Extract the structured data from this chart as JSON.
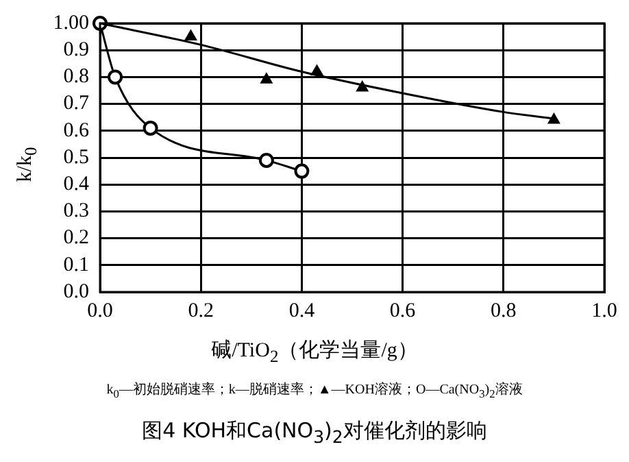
{
  "chart_data": {
    "type": "line",
    "title": "图4 KOH和Ca(NO$_{3}$)$_{2}$对催化剂的影响",
    "xlabel": "碱/TiO$_{2}$（化学当量/g）",
    "ylabel": "k/k$_{0}$",
    "annotations": [
      "k$_{0}$—初始脱硝速率；k—脱硝速率；▲—KOH溶液；O—Ca(NO$_{3}$)$_{2}$溶液"
    ],
    "xlim": [
      0,
      1
    ],
    "xticks": [
      {
        "value": 0,
        "label": "0.0"
      },
      {
        "value": 0.2,
        "label": "0.2"
      },
      {
        "value": 0.4,
        "label": "0.4"
      },
      {
        "value": 0.6,
        "label": "0.6"
      },
      {
        "value": 0.8,
        "label": "0.8"
      },
      {
        "value": 1,
        "label": "1.0"
      }
    ],
    "ylim": [
      0,
      1
    ],
    "yticks": [
      {
        "value": 0,
        "label": "0.0"
      },
      {
        "value": 0.1,
        "label": "0.1"
      },
      {
        "value": 0.2,
        "label": "0.2"
      },
      {
        "value": 0.3,
        "label": "0.3"
      },
      {
        "value": 0.4,
        "label": "0.4"
      },
      {
        "value": 0.5,
        "label": "0.5"
      },
      {
        "value": 0.6,
        "label": "0.6"
      },
      {
        "value": 0.7,
        "label": "0.7"
      },
      {
        "value": 0.8,
        "label": "0.8"
      },
      {
        "value": 0.9,
        "label": "0.9"
      },
      {
        "value": 1,
        "label": "1.00"
      }
    ],
    "grid": true,
    "legend": false,
    "series": [
      {
        "color": "#000000",
        "marker": "none",
        "x": [
          0,
          0.2,
          0.4,
          0.6,
          0.8,
          0.9
        ],
        "values": [
          1.0,
          0.92,
          0.82,
          0.74,
          0.67,
          0.645
        ]
      },
      {
        "type": "scatter",
        "color": "#000000",
        "marker": "triangle",
        "x": [
          0.18,
          0.33,
          0.43,
          0.52,
          0.9
        ],
        "values": [
          0.95,
          0.79,
          0.82,
          0.76,
          0.64
        ]
      },
      {
        "color": "#000000",
        "marker": "circle",
        "x": [
          0,
          0.03,
          0.1,
          0.33,
          0.4
        ],
        "values": [
          1.0,
          0.8,
          0.61,
          0.49,
          0.45
        ]
      }
    ]
  }
}
